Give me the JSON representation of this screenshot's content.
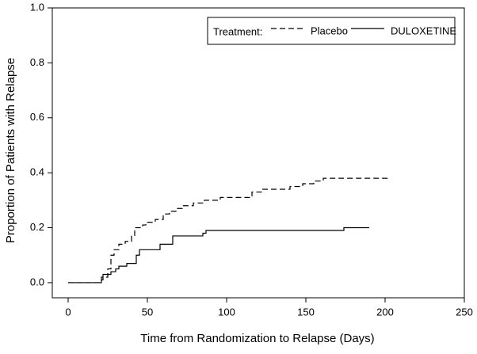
{
  "chart_data": {
    "type": "step",
    "x_label": "Time from Randomization to Relapse (Days)",
    "y_label": "Proportion of Patients with Relapse",
    "legend_title": "Treatment:",
    "legend_position": "upper right",
    "xlim": [
      -10,
      250
    ],
    "ylim": [
      -0.055,
      1.0
    ],
    "xticks": [
      0,
      50,
      100,
      150,
      200,
      250
    ],
    "yticks": [
      {
        "value": 0,
        "label": "0.0"
      },
      {
        "value": 0.2,
        "label": "0.2"
      },
      {
        "value": 0.4,
        "label": "0.4"
      },
      {
        "value": 0.6,
        "label": "0.6"
      },
      {
        "value": 0.8,
        "label": "0.8"
      },
      {
        "value": 1,
        "label": "1.0"
      }
    ],
    "series": [
      {
        "name": "Placebo",
        "color": "#000000",
        "dashed": true,
        "x": [
          0,
          21,
          25,
          27,
          29,
          32,
          36,
          40,
          42,
          47,
          49,
          55,
          60,
          64,
          68,
          72,
          79,
          86,
          96,
          116,
          122,
          140,
          148,
          155,
          161,
          202
        ],
        "values": [
          0,
          0.02,
          0.05,
          0.1,
          0.12,
          0.14,
          0.15,
          0.17,
          0.2,
          0.21,
          0.22,
          0.23,
          0.25,
          0.26,
          0.27,
          0.28,
          0.29,
          0.3,
          0.31,
          0.33,
          0.34,
          0.35,
          0.36,
          0.37,
          0.38,
          0.38
        ]
      },
      {
        "name": "DULOXETINE",
        "color": "#000000",
        "dashed": false,
        "x": [
          0,
          21,
          22,
          27,
          30,
          32,
          37,
          43,
          45,
          58,
          66,
          85,
          87,
          174,
          190
        ],
        "values": [
          0,
          0.01,
          0.03,
          0.04,
          0.05,
          0.06,
          0.07,
          0.1,
          0.12,
          0.14,
          0.17,
          0.18,
          0.19,
          0.2,
          0.2
        ]
      }
    ]
  }
}
